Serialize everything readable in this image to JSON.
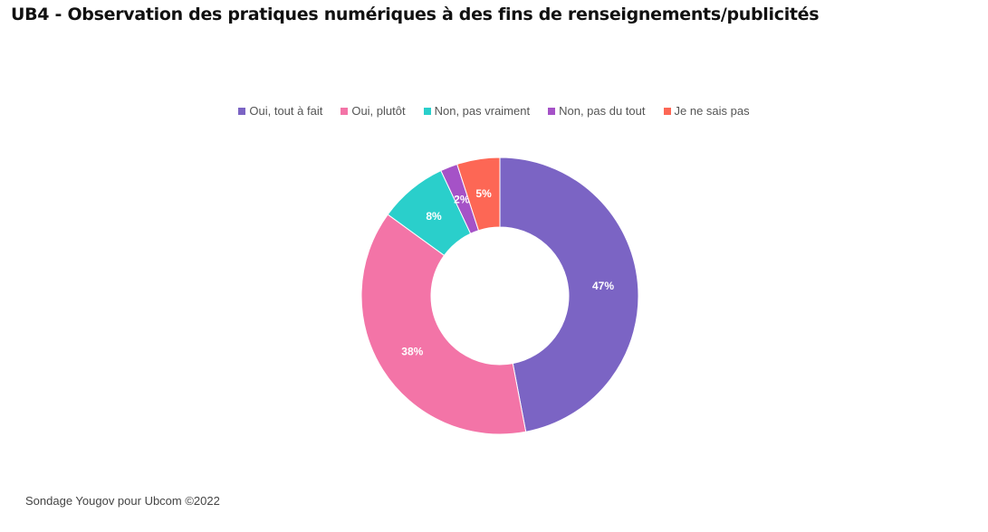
{
  "title": "UB4 - Observation des pratiques numériques à des fins de renseignements/publicités",
  "footer": "Sondage Yougov pour Ubcom ©2022",
  "chart_data": {
    "type": "pie",
    "donut": true,
    "legend_position": "top",
    "categories": [
      "Oui, tout à fait",
      "Oui, plutôt",
      "Non, pas vraiment",
      "Non, pas du tout",
      "Je ne sais pas"
    ],
    "values": [
      47,
      38,
      8,
      2,
      5
    ],
    "labels": [
      "47%",
      "38%",
      "8%",
      "2%",
      "5%"
    ],
    "colors": [
      "#7B64C4",
      "#F374A7",
      "#2ACFCB",
      "#A552C7",
      "#FD6755"
    ]
  }
}
